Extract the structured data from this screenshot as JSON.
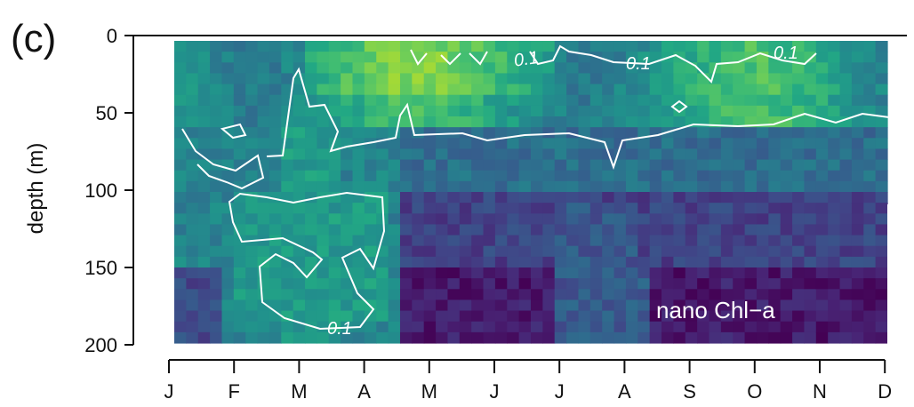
{
  "chart_data": {
    "type": "heatmap",
    "panel_label": "(c)",
    "annotation": "nano Chl−a",
    "ylabel": "depth (m)",
    "xlabel": "",
    "y_ticks": [
      0,
      50,
      100,
      150,
      200
    ],
    "ylim": [
      0,
      200
    ],
    "y_reversed": true,
    "x_ticks": [
      "J",
      "F",
      "M",
      "A",
      "M",
      "J",
      "J",
      "A",
      "S",
      "O",
      "N",
      "D"
    ],
    "colormap": "viridis",
    "contour_level": 0.1,
    "contour_labels": [
      "0.1",
      "0.1",
      "0.1",
      "0.1"
    ],
    "colors": {
      "contour": "#ffffff",
      "low": "#440154",
      "mid": "#21918c",
      "high": "#bddf26"
    }
  }
}
